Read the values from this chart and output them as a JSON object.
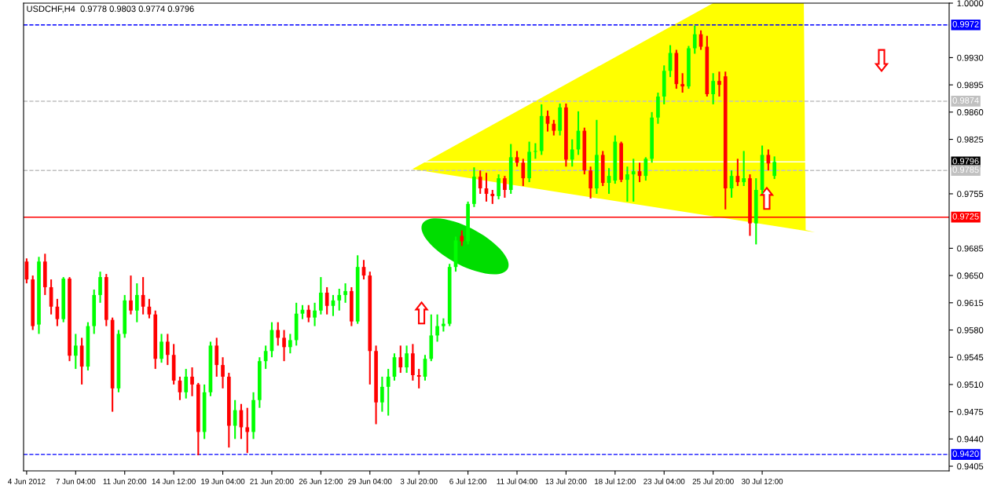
{
  "chart_data": {
    "type": "candlestick",
    "title": "USDCHF,H4  0.9778 0.9803 0.9774 0.9796",
    "categories": [
      "4 Jun 2012",
      null,
      null,
      null,
      null,
      null,
      null,
      null,
      "7 Jun 04:00",
      null,
      null,
      null,
      null,
      null,
      null,
      null,
      "11 Jun 20:00",
      null,
      null,
      null,
      null,
      null,
      null,
      null,
      "14 Jun 12:00",
      null,
      null,
      null,
      null,
      null,
      null,
      null,
      "19 Jun 04:00",
      null,
      null,
      null,
      null,
      null,
      null,
      null,
      "21 Jun 20:00",
      null,
      null,
      null,
      null,
      null,
      null,
      null,
      "26 Jun 12:00",
      null,
      null,
      null,
      null,
      null,
      null,
      null,
      "29 Jun 04:00",
      null,
      null,
      null,
      null,
      null,
      null,
      null,
      "3 Jul 20:00",
      null,
      null,
      null,
      null,
      null,
      null,
      null,
      "6 Jul 12:00",
      null,
      null,
      null,
      null,
      null,
      null,
      null,
      "11 Jul 04:00",
      null,
      null,
      null,
      null,
      null,
      null,
      null,
      "13 Jul 20:00",
      null,
      null,
      null,
      null,
      null,
      null,
      null,
      "18 Jul 12:00",
      null,
      null,
      null,
      null,
      null,
      null,
      null,
      "23 Jul 04:00",
      null,
      null,
      null,
      null,
      null,
      null,
      null,
      "25 Jul 20:00",
      null,
      null,
      null,
      null,
      null,
      null,
      null,
      "30 Jul 12:00",
      null,
      null,
      null,
      null,
      null,
      null,
      null,
      null,
      null,
      null,
      null,
      null,
      null,
      null,
      null,
      null,
      null,
      null,
      null,
      null,
      null,
      null,
      null,
      null,
      null,
      null,
      null,
      null,
      null,
      null
    ],
    "ohlc": [
      [
        0.9668,
        0.9672,
        0.964,
        0.9645
      ],
      [
        0.9645,
        0.965,
        0.958,
        0.9585
      ],
      [
        0.9587,
        0.9674,
        0.9575,
        0.9668
      ],
      [
        0.9668,
        0.9678,
        0.9625,
        0.9635
      ],
      [
        0.9635,
        0.9645,
        0.96,
        0.961
      ],
      [
        0.961,
        0.962,
        0.9585,
        0.9594
      ],
      [
        0.9594,
        0.9648,
        0.959,
        0.9646
      ],
      [
        0.9646,
        0.9648,
        0.954,
        0.9547
      ],
      [
        0.9547,
        0.9575,
        0.953,
        0.956
      ],
      [
        0.956,
        0.957,
        0.951,
        0.9533
      ],
      [
        0.9533,
        0.959,
        0.9528,
        0.9585
      ],
      [
        0.9585,
        0.9632,
        0.9575,
        0.9625
      ],
      [
        0.9625,
        0.9655,
        0.9615,
        0.9648
      ],
      [
        0.9648,
        0.9652,
        0.9585,
        0.9593
      ],
      [
        0.9593,
        0.9596,
        0.9475,
        0.9505
      ],
      [
        0.9505,
        0.958,
        0.95,
        0.9575
      ],
      [
        0.9575,
        0.9625,
        0.957,
        0.9618
      ],
      [
        0.9618,
        0.965,
        0.96,
        0.9605
      ],
      [
        0.9605,
        0.964,
        0.959,
        0.9625
      ],
      [
        0.9625,
        0.9648,
        0.96,
        0.961
      ],
      [
        0.961,
        0.962,
        0.9595,
        0.96
      ],
      [
        0.96,
        0.9605,
        0.953,
        0.9543
      ],
      [
        0.9543,
        0.9575,
        0.9538,
        0.9565
      ],
      [
        0.9565,
        0.9575,
        0.9535,
        0.9548
      ],
      [
        0.9548,
        0.9562,
        0.951,
        0.9515
      ],
      [
        0.9515,
        0.952,
        0.949,
        0.95
      ],
      [
        0.95,
        0.953,
        0.9492,
        0.952
      ],
      [
        0.952,
        0.9532,
        0.9495,
        0.951
      ],
      [
        0.951,
        0.9512,
        0.9419,
        0.9449
      ],
      [
        0.9449,
        0.951,
        0.944,
        0.95
      ],
      [
        0.95,
        0.9565,
        0.9495,
        0.956
      ],
      [
        0.956,
        0.957,
        0.952,
        0.9535
      ],
      [
        0.9535,
        0.9545,
        0.9505,
        0.952
      ],
      [
        0.952,
        0.9525,
        0.9429,
        0.9457
      ],
      [
        0.9457,
        0.949,
        0.944,
        0.9477
      ],
      [
        0.9477,
        0.9485,
        0.944,
        0.9455
      ],
      [
        0.9455,
        0.948,
        0.9422,
        0.9449
      ],
      [
        0.9449,
        0.95,
        0.944,
        0.949
      ],
      [
        0.949,
        0.9545,
        0.948,
        0.954
      ],
      [
        0.954,
        0.956,
        0.953,
        0.9553
      ],
      [
        0.9553,
        0.959,
        0.9545,
        0.958
      ],
      [
        0.958,
        0.959,
        0.956,
        0.957
      ],
      [
        0.957,
        0.958,
        0.954,
        0.9558
      ],
      [
        0.9558,
        0.9575,
        0.955,
        0.9567
      ],
      [
        0.9567,
        0.9615,
        0.956,
        0.9601
      ],
      [
        0.9601,
        0.9612,
        0.9594,
        0.9606
      ],
      [
        0.9606,
        0.9612,
        0.959,
        0.9596
      ],
      [
        0.9596,
        0.9615,
        0.9585,
        0.9605
      ],
      [
        0.9605,
        0.9648,
        0.96,
        0.9628
      ],
      [
        0.9628,
        0.9635,
        0.96,
        0.9611
      ],
      [
        0.9611,
        0.9625,
        0.9598,
        0.9618
      ],
      [
        0.9618,
        0.9633,
        0.9605,
        0.9625
      ],
      [
        0.9625,
        0.964,
        0.9615,
        0.963
      ],
      [
        0.963,
        0.9635,
        0.9585,
        0.9591
      ],
      [
        0.9591,
        0.9676,
        0.9588,
        0.9661
      ],
      [
        0.9661,
        0.967,
        0.9645,
        0.965
      ],
      [
        0.965,
        0.9655,
        0.951,
        0.9553
      ],
      [
        0.9553,
        0.956,
        0.9459,
        0.9487
      ],
      [
        0.9487,
        0.952,
        0.9475,
        0.9507
      ],
      [
        0.9507,
        0.953,
        0.947,
        0.952
      ],
      [
        0.952,
        0.955,
        0.9515,
        0.9545
      ],
      [
        0.9545,
        0.956,
        0.9525,
        0.9532
      ],
      [
        0.9532,
        0.956,
        0.9525,
        0.955
      ],
      [
        0.955,
        0.9562,
        0.9515,
        0.9522
      ],
      [
        0.9522,
        0.953,
        0.9505,
        0.952
      ],
      [
        0.952,
        0.9548,
        0.9515,
        0.9543
      ],
      [
        0.9543,
        0.96,
        0.954,
        0.9573
      ],
      [
        0.9573,
        0.96,
        0.9565,
        0.9585
      ],
      [
        0.9585,
        0.9595,
        0.9578,
        0.9588
      ],
      [
        0.9588,
        0.9665,
        0.9585,
        0.9661
      ],
      [
        0.9661,
        0.97,
        0.9655,
        0.9695
      ],
      [
        0.9701,
        0.9708,
        0.9688,
        0.9694
      ],
      [
        0.9694,
        0.9745,
        0.969,
        0.9742
      ],
      [
        0.9742,
        0.9789,
        0.9738,
        0.9777
      ],
      [
        0.9777,
        0.9785,
        0.9755,
        0.9762
      ],
      [
        0.9762,
        0.9782,
        0.9745,
        0.9755
      ],
      [
        0.9755,
        0.976,
        0.9742,
        0.9752
      ],
      [
        0.9752,
        0.978,
        0.9748,
        0.9775
      ],
      [
        0.9775,
        0.9778,
        0.975,
        0.976
      ],
      [
        0.976,
        0.9819,
        0.9755,
        0.9802
      ],
      [
        0.9802,
        0.981,
        0.979,
        0.9795
      ],
      [
        0.9795,
        0.98,
        0.9765,
        0.9775
      ],
      [
        0.9775,
        0.9822,
        0.977,
        0.9809
      ],
      [
        0.9809,
        0.982,
        0.98,
        0.981
      ],
      [
        0.981,
        0.987,
        0.9805,
        0.9855
      ],
      [
        0.9855,
        0.9862,
        0.9835,
        0.9845
      ],
      [
        0.9845,
        0.985,
        0.983,
        0.9836
      ],
      [
        0.9836,
        0.9871,
        0.983,
        0.9866
      ],
      [
        0.9866,
        0.9871,
        0.979,
        0.9799
      ],
      [
        0.9799,
        0.9825,
        0.979,
        0.9812
      ],
      [
        0.9812,
        0.9861,
        0.9805,
        0.9836
      ],
      [
        0.9836,
        0.984,
        0.978,
        0.9785
      ],
      [
        0.9785,
        0.979,
        0.9749,
        0.9762
      ],
      [
        0.9762,
        0.985,
        0.9755,
        0.9805
      ],
      [
        0.9805,
        0.981,
        0.9765,
        0.9769
      ],
      [
        0.9769,
        0.9788,
        0.9755,
        0.9778
      ],
      [
        0.9772,
        0.983,
        0.9768,
        0.9822
      ],
      [
        0.982,
        0.9822,
        0.977,
        0.9773
      ],
      [
        0.9773,
        0.979,
        0.9745,
        0.978
      ],
      [
        0.978,
        0.98,
        0.9745,
        0.9784
      ],
      [
        0.9784,
        0.9795,
        0.977,
        0.9778
      ],
      [
        0.9778,
        0.9802,
        0.9772,
        0.98
      ],
      [
        0.98,
        0.986,
        0.9795,
        0.9853
      ],
      [
        0.9853,
        0.9885,
        0.9845,
        0.988
      ],
      [
        0.988,
        0.992,
        0.987,
        0.9913
      ],
      [
        0.9913,
        0.9946,
        0.9905,
        0.9936
      ],
      [
        0.9936,
        0.994,
        0.989,
        0.9896
      ],
      [
        0.9896,
        0.991,
        0.9885,
        0.9893
      ],
      [
        0.9893,
        0.9945,
        0.989,
        0.9942
      ],
      [
        0.9942,
        0.9971,
        0.9935,
        0.996
      ],
      [
        0.996,
        0.9965,
        0.994,
        0.9944
      ],
      [
        0.9944,
        0.9958,
        0.988,
        0.9883
      ],
      [
        0.9883,
        0.991,
        0.987,
        0.99
      ],
      [
        0.99,
        0.9912,
        0.988,
        0.9895
      ],
      [
        0.9906,
        0.9912,
        0.9735,
        0.9762
      ],
      [
        0.9762,
        0.9785,
        0.975,
        0.9778
      ],
      [
        0.9778,
        0.98,
        0.9765,
        0.977
      ],
      [
        0.977,
        0.981,
        0.9765,
        0.9775
      ],
      [
        0.9775,
        0.978,
        0.9701,
        0.9717
      ],
      [
        0.9717,
        0.9775,
        0.969,
        0.976
      ],
      [
        0.976,
        0.9817,
        0.9755,
        0.9805
      ],
      [
        0.9805,
        0.9812,
        0.9785,
        0.9794
      ],
      [
        0.9778,
        0.9803,
        0.9774,
        0.9796
      ],
      null,
      null,
      null,
      null,
      null,
      null,
      null,
      null,
      null,
      null,
      null,
      null,
      null,
      null,
      null,
      null,
      null,
      null,
      null,
      null,
      null,
      null,
      null,
      null,
      null,
      null,
      null,
      null
    ],
    "colors": [
      "#ff0000",
      "#ff0000",
      "#00ff00",
      "#ff0000",
      "#ff0000",
      "#ff0000",
      "#00ff00",
      "#ff0000",
      "#00ff00",
      "#ff0000",
      "#00ff00",
      "#00ff00",
      "#00ff00",
      "#ff0000",
      "#ff0000",
      "#00ff00",
      "#00ff00",
      "#ff0000",
      "#00ff00",
      "#ff0000",
      "#ff0000",
      "#ff0000",
      "#00ff00",
      "#ff0000",
      "#ff0000",
      "#ff0000",
      "#00ff00",
      "#ff0000",
      "#ff0000",
      "#00ff00",
      "#00ff00",
      "#ff0000",
      "#ff0000",
      "#ff0000",
      "#00ff00",
      "#ff0000",
      "#ff0000",
      "#00ff00",
      "#00ff00",
      "#00ff00",
      "#00ff00",
      "#ff0000",
      "#ff0000",
      "#00ff00",
      "#00ff00",
      "#00ff00",
      "#ff0000",
      "#00ff00",
      "#00ff00",
      "#ff0000",
      "#00ff00",
      "#00ff00",
      "#00ff00",
      "#ff0000",
      "#00ff00",
      "#ff0000",
      "#ff0000",
      "#ff0000",
      "#00ff00",
      "#00ff00",
      "#00ff00",
      "#ff0000",
      "#00ff00",
      "#ff0000",
      "#ff0000",
      "#00ff00",
      "#00ff00",
      "#00ff00",
      "#00ff00",
      "#00ff00",
      "#00ff00",
      "#ff0000",
      "#00ff00",
      "#00ff00",
      "#ff0000",
      "#ff0000",
      "#ff0000",
      "#00ff00",
      "#ff0000",
      "#00ff00",
      "#ff0000",
      "#ff0000",
      "#00ff00",
      "#00ff00",
      "#00ff00",
      "#ff0000",
      "#ff0000",
      "#00ff00",
      "#ff0000",
      "#00ff00",
      "#00ff00",
      "#ff0000",
      "#ff0000",
      "#00ff00",
      "#ff0000",
      "#00ff00",
      "#00ff00",
      "#ff0000",
      "#00ff00",
      "#00ff00",
      "#ff0000",
      "#00ff00",
      "#00ff00",
      "#00ff00",
      "#00ff00",
      "#00ff00",
      "#ff0000",
      "#ff0000",
      "#00ff00",
      "#00ff00",
      "#ff0000",
      "#ff0000",
      "#00ff00",
      "#ff0000",
      "#ff0000",
      "#00ff00",
      "#ff0000",
      "#00ff00",
      "#ff0000",
      "#00ff00",
      "#00ff00",
      "#ff0000",
      "#00ff00",
      null,
      null,
      null,
      null,
      null,
      null,
      null,
      null,
      null,
      null,
      null,
      null,
      null,
      null,
      null,
      null,
      null,
      null,
      null,
      null,
      null,
      null,
      null,
      null,
      null,
      null,
      null,
      null
    ],
    "ylim": [
      0.9399,
      1.0
    ],
    "yticks": [
      {
        "value": 0.9405,
        "label": "0.9405"
      },
      {
        "value": 0.944,
        "label": "0.9440"
      },
      {
        "value": 0.9475,
        "label": "0.9475"
      },
      {
        "value": 0.951,
        "label": "0.9510"
      },
      {
        "value": 0.9545,
        "label": "0.9545"
      },
      {
        "value": 0.958,
        "label": "0.9580"
      },
      {
        "value": 0.9615,
        "label": "0.9615"
      },
      {
        "value": 0.965,
        "label": "0.9650"
      },
      {
        "value": 0.9685,
        "label": "0.9685"
      },
      {
        "value": 0.9755,
        "label": "0.9755"
      },
      {
        "value": 0.9825,
        "label": "0.9825"
      },
      {
        "value": 0.986,
        "label": "0.9860"
      },
      {
        "value": 0.9895,
        "label": "0.9895"
      },
      {
        "value": 0.993,
        "label": "0.9930"
      },
      {
        "value": 1.0,
        "label": "1.0000"
      }
    ],
    "ref_lines": [
      {
        "axis": "y",
        "value": 0.9972,
        "label": "0.9972",
        "color": "#0000ff",
        "line_style": "dashed"
      },
      {
        "axis": "y",
        "value": 0.9874,
        "label": "0.9874",
        "color": "#c0c0c0",
        "line_style": "dashed"
      },
      {
        "axis": "y",
        "value": 0.9796,
        "label": "0.9796",
        "color": "#ffffff",
        "line_style": "solid"
      },
      {
        "axis": "y",
        "value": 0.9785,
        "label": "0.9785",
        "color": "#c0c0c0",
        "line_style": "dashed"
      },
      {
        "axis": "y",
        "value": 0.9725,
        "label": "0.9725",
        "color": "#ff0000",
        "line_style": "solid"
      },
      {
        "axis": "y",
        "value": 0.942,
        "label": "0.9420",
        "color": "#0000ff",
        "line_style": "dashed"
      }
    ],
    "grid": false,
    "legend": false
  }
}
